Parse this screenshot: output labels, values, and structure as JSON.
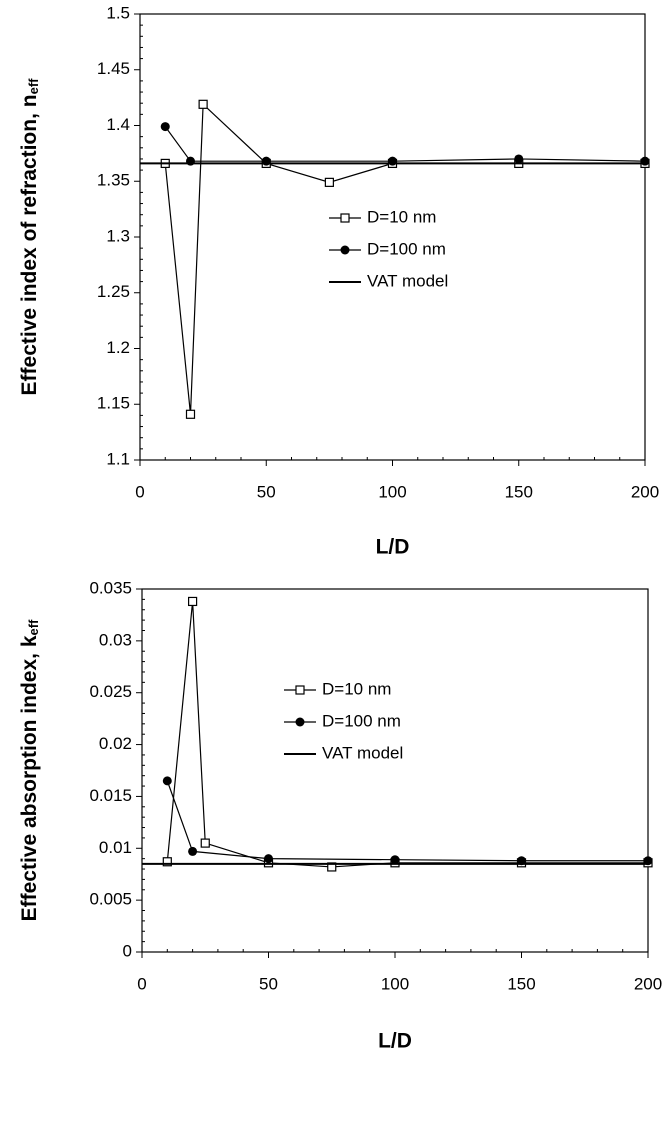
{
  "chart_data": [
    {
      "type": "line",
      "x_label": "L/D",
      "y_label": "Effective index of refraction, n",
      "y_label_sub": "eff",
      "xlim": [
        0,
        200
      ],
      "xticks": [
        0,
        50,
        100,
        150,
        200
      ],
      "ylim": [
        1.1,
        1.5
      ],
      "yticks": [
        1.1,
        1.15,
        1.2,
        1.25,
        1.3,
        1.35,
        1.4,
        1.45,
        1.5
      ],
      "series": [
        {
          "name": "D=10 nm",
          "color": "#000000",
          "marker": "square-open",
          "x": [
            10,
            20,
            25,
            50,
            75,
            100,
            150,
            200
          ],
          "values": [
            1.366,
            1.141,
            1.419,
            1.366,
            1.349,
            1.366,
            1.366,
            1.366
          ]
        },
        {
          "name": "D=100 nm",
          "color": "#000000",
          "marker": "circle-filled",
          "x": [
            10,
            20,
            50,
            100,
            150,
            200
          ],
          "values": [
            1.399,
            1.368,
            1.368,
            1.368,
            1.37,
            1.368
          ]
        },
        {
          "name": "VAT model",
          "color": "#000000",
          "marker": "none",
          "x": [
            0,
            200
          ],
          "values": [
            1.366,
            1.366
          ]
        }
      ]
    },
    {
      "type": "line",
      "x_label": "L/D",
      "y_label": "Effective absorption index, k",
      "y_label_sub": "eff",
      "xlim": [
        0,
        200
      ],
      "xticks": [
        0,
        50,
        100,
        150,
        200
      ],
      "ylim": [
        0,
        0.035
      ],
      "yticks": [
        0,
        0.005,
        0.01,
        0.015,
        0.02,
        0.025,
        0.03,
        0.035
      ],
      "series": [
        {
          "name": "D=10 nm",
          "color": "#000000",
          "marker": "square-open",
          "x": [
            10,
            20,
            25,
            50,
            75,
            100,
            150,
            200
          ],
          "values": [
            0.0087,
            0.0338,
            0.0105,
            0.0086,
            0.0082,
            0.0086,
            0.0086,
            0.0086
          ]
        },
        {
          "name": "D=100 nm",
          "color": "#000000",
          "marker": "circle-filled",
          "x": [
            10,
            20,
            50,
            100,
            150,
            200
          ],
          "values": [
            0.0165,
            0.0097,
            0.009,
            0.0089,
            0.0088,
            0.0088
          ]
        },
        {
          "name": "VAT model",
          "color": "#000000",
          "marker": "none",
          "x": [
            0,
            200
          ],
          "values": [
            0.0085,
            0.0085
          ]
        }
      ]
    }
  ]
}
